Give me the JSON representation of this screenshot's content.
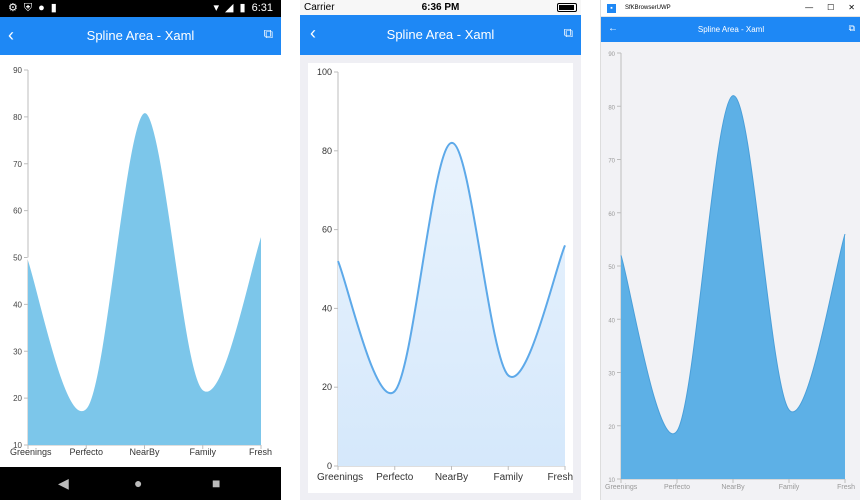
{
  "android": {
    "status": {
      "time": "6:31",
      "left_icons": [
        "gear-icon",
        "shield-icon",
        "circle-icon",
        "sdcard-icon"
      ],
      "right_icons": [
        "wifi-icon",
        "signal-icon",
        "battery-icon"
      ]
    },
    "title": "Spline Area - Xaml",
    "back_icon": "‹",
    "external_icon": "⧉",
    "nav": {
      "back": "◀",
      "home": "●",
      "recent": "■"
    }
  },
  "ios": {
    "status": {
      "carrier": "Carrier",
      "time": "6:36 PM"
    },
    "title": "Spline Area - Xaml",
    "back_icon": "‹",
    "external_icon": "⧉"
  },
  "uwp": {
    "window_title": "SfKBrowserUWP",
    "controls": {
      "minimize": "—",
      "maximize": "☐",
      "close": "✕"
    },
    "title": "Spline Area - Xaml",
    "back_icon": "←",
    "external_icon": "⧉"
  },
  "chart_data": [
    {
      "type": "area",
      "platform": "android",
      "categories": [
        "Greenings",
        "Perfecto",
        "NearBy",
        "Family",
        "Fresh"
      ],
      "values": [
        50,
        18,
        81,
        22,
        55
      ],
      "ylim": [
        10,
        90
      ],
      "yticks": [
        10,
        20,
        30,
        40,
        50,
        60,
        70,
        80,
        90
      ],
      "fill": "#7CC6EA",
      "stroke": "#FFFFFF"
    },
    {
      "type": "area",
      "platform": "ios",
      "categories": [
        "Greenings",
        "Perfecto",
        "NearBy",
        "Family",
        "Fresh"
      ],
      "values": [
        52,
        19,
        82,
        23,
        56
      ],
      "ylim": [
        0,
        100
      ],
      "yticks": [
        0,
        20,
        40,
        60,
        80,
        100
      ],
      "fill_gradient": [
        "#E9F3FD",
        "#D5E8FB"
      ],
      "stroke": "#5DA9E9"
    },
    {
      "type": "area",
      "platform": "uwp",
      "categories": [
        "Greenings",
        "Perfecto",
        "NearBy",
        "Family",
        "Fresh"
      ],
      "values": [
        52,
        19,
        82,
        23,
        56
      ],
      "ylim": [
        10,
        90
      ],
      "yticks": [
        10,
        20,
        30,
        40,
        50,
        60,
        70,
        80,
        90
      ],
      "fill": "#5DB0E6",
      "stroke": "#4A9FD9"
    }
  ]
}
